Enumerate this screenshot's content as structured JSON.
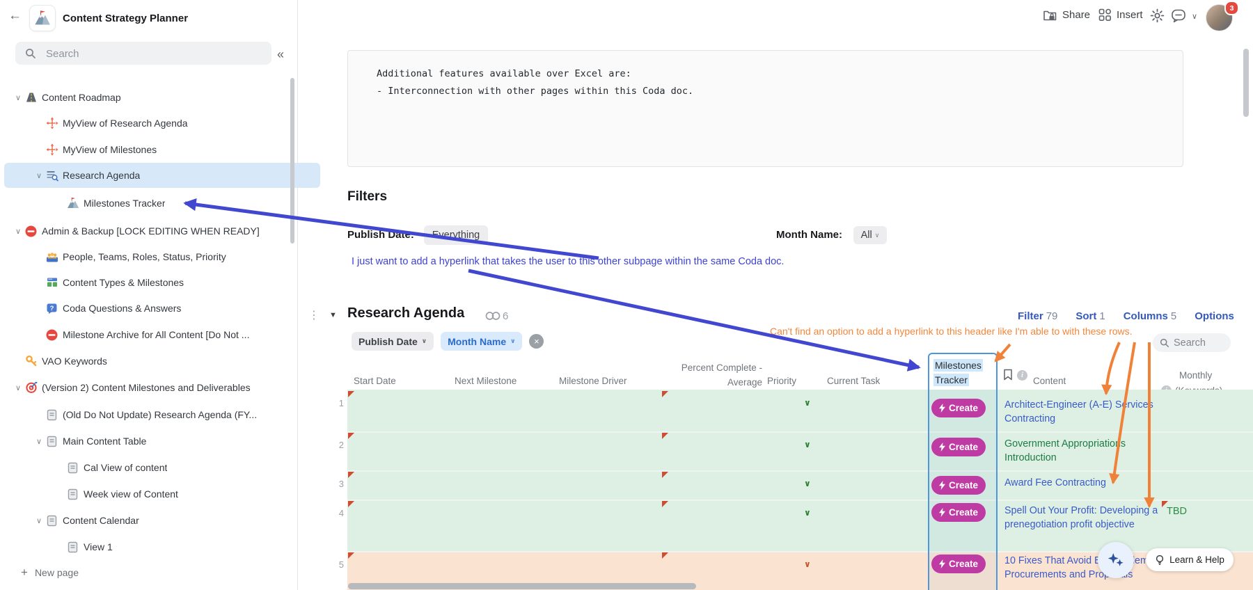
{
  "app": {
    "title": "Content Strategy Planner"
  },
  "icons_glyphs": {
    "back": "←",
    "collapse": "«",
    "chevron_down": "∨",
    "triangle_down": "▼",
    "kebab": "⋮",
    "close": "×",
    "plus": "+"
  },
  "topbar": {
    "share_label": "Share",
    "insert_label": "Insert",
    "notification_count": "3"
  },
  "sidebar": {
    "search_placeholder": "Search",
    "new_page_label": "New page",
    "items": [
      {
        "label": "Content Roadmap",
        "icon": "road-icon",
        "level": 0,
        "chevron": true
      },
      {
        "label": "MyView of Research Agenda",
        "icon": "move-icon",
        "level": 1
      },
      {
        "label": "MyView of Milestones",
        "icon": "move-icon",
        "level": 1
      },
      {
        "label": "Research Agenda",
        "icon": "table-search-icon",
        "level": 1,
        "chevron": true,
        "selected": true
      },
      {
        "label": "Milestones Tracker",
        "icon": "mountain-icon",
        "level": 2
      },
      {
        "label": "Admin & Backup [LOCK EDITING WHEN READY]",
        "icon": "no-entry-icon",
        "level": 0,
        "chevron": true
      },
      {
        "label": "People, Teams, Roles, Status, Priority",
        "icon": "people-icon",
        "level": 1
      },
      {
        "label": "Content Types & Milestones",
        "icon": "content-types-icon",
        "level": 1
      },
      {
        "label": "Coda Questions & Answers",
        "icon": "question-icon",
        "level": 1
      },
      {
        "label": "Milestone Archive for All Content [Do Not ...",
        "icon": "no-entry-icon",
        "level": 1
      },
      {
        "label": "VAO Keywords",
        "icon": "key-icon",
        "level": 0
      },
      {
        "label": "(Version 2) Content Milestones and Deliverables",
        "icon": "target-icon",
        "level": 0,
        "chevron": true
      },
      {
        "label": "(Old Do Not Update) Research Agenda (FY...",
        "icon": "page-icon",
        "level": 1
      },
      {
        "label": "Main Content Table",
        "icon": "page-icon",
        "level": 1,
        "chevron": true
      },
      {
        "label": "Cal View of content",
        "icon": "page-icon",
        "level": 2
      },
      {
        "label": "Week view of Content",
        "icon": "page-icon",
        "level": 2
      },
      {
        "label": "Content Calendar",
        "icon": "page-icon",
        "level": 1,
        "chevron": true
      },
      {
        "label": "View 1",
        "icon": "page-icon",
        "level": 2
      }
    ]
  },
  "content": {
    "code_block_lines": [
      "Additional features available over Excel are:",
      "- Interconnection with other pages within this Coda doc."
    ],
    "filters": {
      "heading": "Filters",
      "publish_date_label": "Publish Date:",
      "publish_date_value": "Everything",
      "month_name_label": "Month Name:",
      "month_name_value": "All"
    },
    "blue_annotation": "I just want to add a hyperlink that takes the user to this other subpage within the same Coda doc.",
    "orange_annotation": "Can't find an option to add a hyperlink to this header like I'm able to with these rows."
  },
  "table": {
    "title": "Research Agenda",
    "link_count": "6",
    "controls": [
      {
        "label": "Filter",
        "count": "79"
      },
      {
        "label": "Sort",
        "count": "1"
      },
      {
        "label": "Columns",
        "count": "5"
      },
      {
        "label": "Options",
        "count": ""
      }
    ],
    "filter_chips": [
      {
        "label": "Publish Date",
        "style": "gray"
      },
      {
        "label": "Month Name",
        "style": "blue"
      }
    ],
    "search_label": "Search",
    "columns": [
      "Start Date",
      "Next Milestone",
      "Milestone Driver",
      "Percent Complete - Average",
      "Priority",
      "Current Task",
      "Milestones Tracker",
      "Content",
      "Monthly (Keywords)"
    ],
    "rows": [
      {
        "num": "1",
        "create_label": "Create",
        "content": "Architect-Engineer (A-E) Services Contracting",
        "content_color": "blue",
        "row_color": "green"
      },
      {
        "num": "2",
        "create_label": "Create",
        "content": "Government Appropriations Introduction",
        "content_color": "green",
        "row_color": "green"
      },
      {
        "num": "3",
        "create_label": "Create",
        "content": "Award Fee Contracting",
        "content_color": "blue",
        "row_color": "green"
      },
      {
        "num": "4",
        "create_label": "Create",
        "content": "Spell Out Your Profit: Developing a prenegotiation profit objective",
        "content_color": "blue",
        "row_color": "green",
        "monthly_value": "TBD"
      },
      {
        "num": "5",
        "create_label": "Create",
        "content": "10 Fixes That Avoid Big Problems in Procurements and Proposals",
        "content_color": "blue",
        "row_color": "peach"
      }
    ]
  },
  "footer": {
    "learn_help_label": "Learn & Help"
  },
  "colors": {
    "accent_blue": "#3558bf",
    "annotation_blue": "#3d43d0",
    "annotation_orange": "#f4863a",
    "create_magenta": "#bf3ba4",
    "row_green": "#ddf0e3",
    "row_peach": "#fbe3d1",
    "selected_column_border": "#4e95d9",
    "sidebar_selected": "#d7e9f8",
    "link_blue": "#3a5bc7",
    "link_green": "#1f7a46",
    "flag_red": "#cf4b32",
    "badge_red": "#e5483f"
  }
}
